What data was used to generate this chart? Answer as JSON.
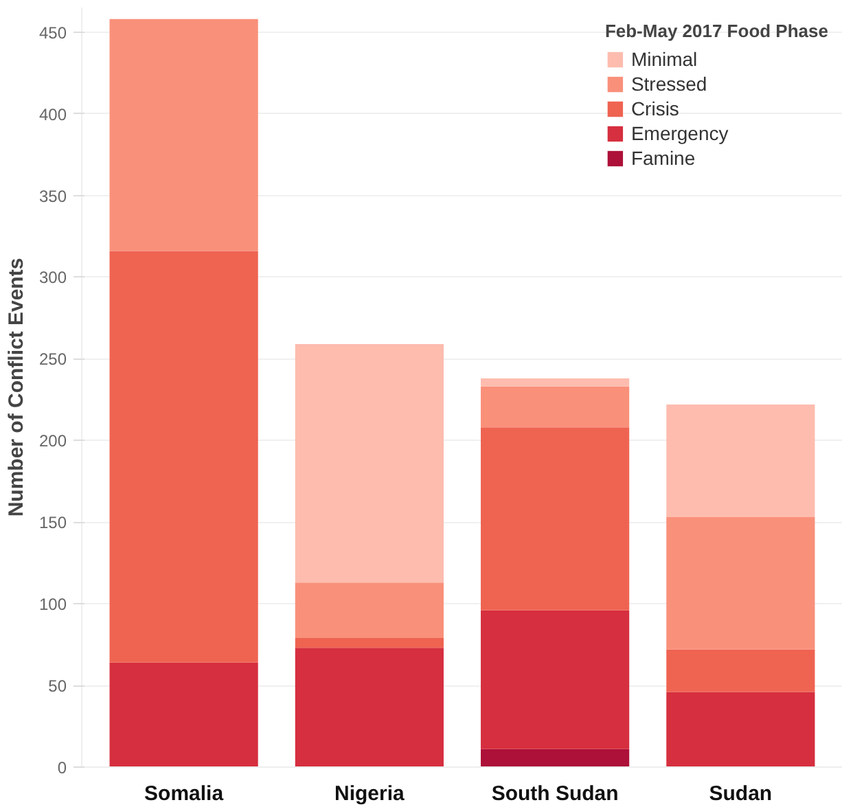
{
  "chart_data": {
    "type": "bar",
    "stacked": true,
    "ylabel": "Number of Conflict Events",
    "legend_title": "Feb-May 2017 Food Phase",
    "categories": [
      "Somalia",
      "Nigeria",
      "South Sudan",
      "Sudan"
    ],
    "series": [
      {
        "name": "Famine",
        "color": "#ad1038",
        "values": [
          0,
          0,
          11,
          0
        ]
      },
      {
        "name": "Emergency",
        "color": "#d62f3f",
        "values": [
          64,
          73,
          85,
          46
        ]
      },
      {
        "name": "Crisis",
        "color": "#ef6351",
        "values": [
          252,
          6,
          112,
          26
        ]
      },
      {
        "name": "Stressed",
        "color": "#f9907a",
        "values": [
          142,
          34,
          25,
          81
        ]
      },
      {
        "name": "Minimal",
        "color": "#fdbcae",
        "values": [
          0,
          146,
          5,
          69
        ]
      }
    ],
    "ylim": [
      0,
      465
    ],
    "yticks": [
      0,
      50,
      100,
      150,
      200,
      250,
      300,
      350,
      400,
      450
    ],
    "grid": "y",
    "legend": "top right"
  }
}
